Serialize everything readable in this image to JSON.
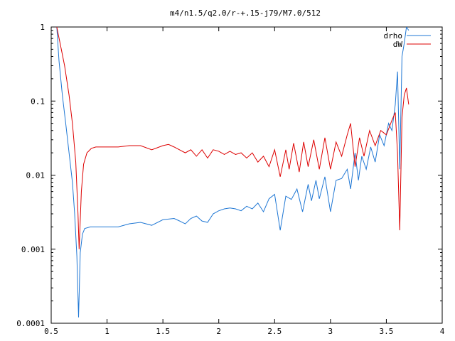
{
  "chart_data": {
    "type": "line",
    "title": "m4/n1.5/q2.0/r-+.15-j79/M7.0/512",
    "xlabel": "",
    "ylabel": "",
    "xlim": [
      0.5,
      4
    ],
    "ylim": [
      0.0001,
      1
    ],
    "yscale": "log",
    "grid": false,
    "legend_position": "top-right",
    "x_ticks": [
      0.5,
      1,
      1.5,
      2,
      2.5,
      3,
      3.5,
      4
    ],
    "x_tick_labels": [
      "0.5",
      "1",
      "1.5",
      "2",
      "2.5",
      "3",
      "3.5",
      "4"
    ],
    "y_ticks": [
      0.0001,
      0.001,
      0.01,
      0.1,
      1
    ],
    "y_tick_labels": [
      "0.0001",
      "0.001",
      "0.01",
      "0.1",
      "1"
    ],
    "series": [
      {
        "name": "drho",
        "color": "#1f77d4",
        "points": [
          [
            0.55,
            1.0
          ],
          [
            0.57,
            0.35
          ],
          [
            0.6,
            0.12
          ],
          [
            0.63,
            0.05
          ],
          [
            0.66,
            0.02
          ],
          [
            0.69,
            0.008
          ],
          [
            0.71,
            0.003
          ],
          [
            0.73,
            0.0008
          ],
          [
            0.745,
            0.00012
          ],
          [
            0.76,
            0.0009
          ],
          [
            0.78,
            0.0016
          ],
          [
            0.8,
            0.0019
          ],
          [
            0.85,
            0.002
          ],
          [
            0.9,
            0.002
          ],
          [
            1.0,
            0.002
          ],
          [
            1.1,
            0.002
          ],
          [
            1.2,
            0.0022
          ],
          [
            1.3,
            0.0023
          ],
          [
            1.4,
            0.0021
          ],
          [
            1.5,
            0.0025
          ],
          [
            1.6,
            0.0026
          ],
          [
            1.65,
            0.0024
          ],
          [
            1.7,
            0.0022
          ],
          [
            1.75,
            0.0026
          ],
          [
            1.8,
            0.0028
          ],
          [
            1.85,
            0.0024
          ],
          [
            1.9,
            0.0023
          ],
          [
            1.95,
            0.003
          ],
          [
            2.0,
            0.0033
          ],
          [
            2.05,
            0.0035
          ],
          [
            2.1,
            0.0036
          ],
          [
            2.15,
            0.0035
          ],
          [
            2.2,
            0.0033
          ],
          [
            2.25,
            0.0038
          ],
          [
            2.3,
            0.0035
          ],
          [
            2.35,
            0.0042
          ],
          [
            2.4,
            0.0032
          ],
          [
            2.45,
            0.0048
          ],
          [
            2.5,
            0.0055
          ],
          [
            2.55,
            0.0018
          ],
          [
            2.6,
            0.0052
          ],
          [
            2.65,
            0.0047
          ],
          [
            2.7,
            0.0065
          ],
          [
            2.75,
            0.0032
          ],
          [
            2.8,
            0.0075
          ],
          [
            2.83,
            0.0045
          ],
          [
            2.87,
            0.0085
          ],
          [
            2.9,
            0.0048
          ],
          [
            2.95,
            0.0095
          ],
          [
            3.0,
            0.0032
          ],
          [
            3.05,
            0.0085
          ],
          [
            3.1,
            0.009
          ],
          [
            3.15,
            0.012
          ],
          [
            3.18,
            0.0065
          ],
          [
            3.22,
            0.02
          ],
          [
            3.25,
            0.0085
          ],
          [
            3.28,
            0.018
          ],
          [
            3.32,
            0.012
          ],
          [
            3.36,
            0.024
          ],
          [
            3.4,
            0.015
          ],
          [
            3.44,
            0.035
          ],
          [
            3.48,
            0.025
          ],
          [
            3.52,
            0.05
          ],
          [
            3.55,
            0.04
          ],
          [
            3.58,
            0.09
          ],
          [
            3.6,
            0.25
          ],
          [
            3.62,
            0.012
          ],
          [
            3.64,
            0.4
          ],
          [
            3.66,
            0.6
          ],
          [
            3.68,
            1.0
          ],
          [
            3.7,
            0.9
          ]
        ]
      },
      {
        "name": "dW",
        "color": "#dd0000",
        "points": [
          [
            0.55,
            1.0
          ],
          [
            0.58,
            0.6
          ],
          [
            0.62,
            0.3
          ],
          [
            0.66,
            0.12
          ],
          [
            0.69,
            0.05
          ],
          [
            0.72,
            0.015
          ],
          [
            0.74,
            0.003
          ],
          [
            0.75,
            0.001
          ],
          [
            0.77,
            0.006
          ],
          [
            0.79,
            0.014
          ],
          [
            0.82,
            0.02
          ],
          [
            0.86,
            0.023
          ],
          [
            0.9,
            0.024
          ],
          [
            1.0,
            0.024
          ],
          [
            1.1,
            0.024
          ],
          [
            1.2,
            0.025
          ],
          [
            1.3,
            0.025
          ],
          [
            1.4,
            0.022
          ],
          [
            1.5,
            0.025
          ],
          [
            1.55,
            0.026
          ],
          [
            1.6,
            0.024
          ],
          [
            1.7,
            0.02
          ],
          [
            1.75,
            0.022
          ],
          [
            1.8,
            0.018
          ],
          [
            1.85,
            0.022
          ],
          [
            1.9,
            0.017
          ],
          [
            1.95,
            0.022
          ],
          [
            2.0,
            0.021
          ],
          [
            2.05,
            0.019
          ],
          [
            2.1,
            0.021
          ],
          [
            2.15,
            0.019
          ],
          [
            2.2,
            0.02
          ],
          [
            2.25,
            0.017
          ],
          [
            2.3,
            0.02
          ],
          [
            2.35,
            0.015
          ],
          [
            2.4,
            0.018
          ],
          [
            2.45,
            0.013
          ],
          [
            2.5,
            0.022
          ],
          [
            2.55,
            0.0095
          ],
          [
            2.6,
            0.022
          ],
          [
            2.63,
            0.012
          ],
          [
            2.67,
            0.027
          ],
          [
            2.72,
            0.011
          ],
          [
            2.76,
            0.028
          ],
          [
            2.8,
            0.013
          ],
          [
            2.85,
            0.03
          ],
          [
            2.9,
            0.012
          ],
          [
            2.95,
            0.032
          ],
          [
            3.0,
            0.012
          ],
          [
            3.05,
            0.028
          ],
          [
            3.1,
            0.018
          ],
          [
            3.15,
            0.035
          ],
          [
            3.18,
            0.05
          ],
          [
            3.22,
            0.013
          ],
          [
            3.26,
            0.032
          ],
          [
            3.3,
            0.018
          ],
          [
            3.35,
            0.04
          ],
          [
            3.4,
            0.025
          ],
          [
            3.45,
            0.04
          ],
          [
            3.5,
            0.035
          ],
          [
            3.55,
            0.055
          ],
          [
            3.58,
            0.07
          ],
          [
            3.6,
            0.02
          ],
          [
            3.62,
            0.0018
          ],
          [
            3.64,
            0.06
          ],
          [
            3.66,
            0.12
          ],
          [
            3.68,
            0.15
          ],
          [
            3.7,
            0.09
          ]
        ]
      }
    ]
  }
}
